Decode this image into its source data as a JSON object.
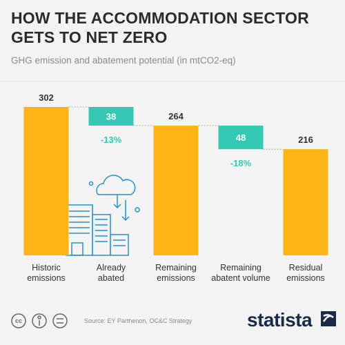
{
  "chart_data": {
    "type": "waterfall",
    "title": "HOW THE ACCOMMODATION SECTOR\nGETS TO NET ZERO",
    "subtitle": "GHG emission and abatement potential (in mtCO2-eq)",
    "categories": [
      "Historic\nemissions",
      "Already\nabated",
      "Remaining\nemissions",
      "Remaining\nabatent volume",
      "Residual\nemissions"
    ],
    "values": [
      302,
      38,
      264,
      48,
      216
    ],
    "kinds": [
      "total",
      "decrease",
      "total",
      "decrease",
      "total"
    ],
    "percent_labels": [
      null,
      "-13%",
      null,
      "-18%",
      null
    ],
    "total_color": "#fdb515",
    "decrease_color": "#35c9b5",
    "source": "Source: EY Parthenon, OC&C Strategy",
    "brand": "statista"
  }
}
